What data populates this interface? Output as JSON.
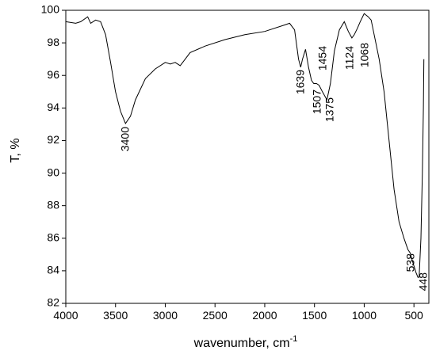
{
  "chart_data": {
    "type": "line",
    "ylabel": "T, %",
    "xlabel": "wavenumber, cm",
    "xlabel_superscript": "-1",
    "xlim": [
      4000,
      350
    ],
    "ylim": [
      82,
      100
    ],
    "xticks": [
      4000,
      3500,
      3000,
      2500,
      2000,
      1500,
      1000,
      500
    ],
    "yticks": [
      82,
      84,
      86,
      88,
      90,
      92,
      94,
      96,
      98,
      100
    ],
    "annotations": [
      "3400",
      "1639",
      "1507",
      "1375",
      "1454",
      "1124",
      "1068",
      "538",
      "448"
    ],
    "series": [
      {
        "color": "#000000",
        "x": [
          4000,
          3900,
          3850,
          3780,
          3750,
          3700,
          3650,
          3600,
          3550,
          3500,
          3450,
          3400,
          3350,
          3300,
          3200,
          3100,
          3000,
          2950,
          2900,
          2850,
          2800,
          2750,
          2600,
          2400,
          2200,
          2000,
          1800,
          1750,
          1700,
          1660,
          1639,
          1620,
          1590,
          1560,
          1530,
          1507,
          1480,
          1454,
          1420,
          1375,
          1340,
          1300,
          1250,
          1200,
          1160,
          1124,
          1100,
          1068,
          1040,
          1000,
          960,
          930,
          900,
          850,
          800,
          750,
          700,
          650,
          600,
          560,
          538,
          510,
          480,
          460,
          448,
          430,
          415,
          405,
          400
        ],
        "values": [
          99.3,
          99.2,
          99.3,
          99.6,
          99.2,
          99.4,
          99.3,
          98.5,
          96.8,
          95.0,
          93.8,
          93.05,
          93.5,
          94.5,
          95.8,
          96.4,
          96.8,
          96.7,
          96.8,
          96.6,
          97.0,
          97.4,
          97.8,
          98.2,
          98.5,
          98.7,
          99.1,
          99.2,
          98.8,
          97.0,
          96.5,
          97.0,
          97.6,
          96.5,
          95.7,
          95.5,
          95.5,
          95.4,
          95.0,
          94.5,
          95.5,
          97.5,
          98.8,
          99.3,
          98.7,
          98.3,
          98.5,
          98.9,
          99.3,
          99.8,
          99.6,
          99.4,
          98.5,
          97.0,
          95.0,
          92.0,
          89.0,
          87.0,
          86.0,
          85.3,
          85.1,
          84.5,
          83.9,
          83.6,
          83.6,
          86.0,
          90.0,
          94.0,
          97.0
        ]
      }
    ]
  }
}
